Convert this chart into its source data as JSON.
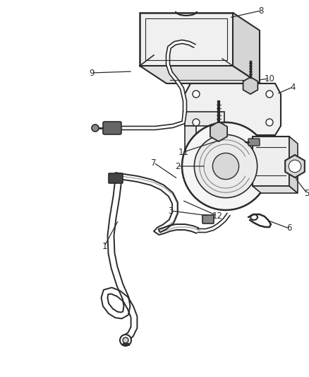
{
  "bg_color": "#ffffff",
  "line_color": "#2a2a2a",
  "label_color": "#2a2a2a",
  "figsize": [
    4.39,
    5.33
  ],
  "dpi": 100
}
